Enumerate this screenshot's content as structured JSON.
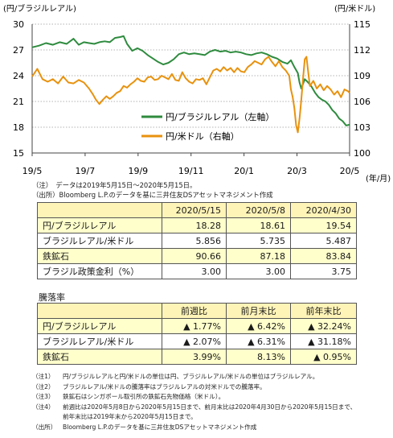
{
  "chart_data": {
    "type": "line",
    "left_axis_label": "(円/ブラジルレアル)",
    "right_axis_label": "(円/米ドル)",
    "x_unit_label": "(年/月)",
    "x_tick_labels": [
      "19/5",
      "19/7",
      "19/9",
      "19/11",
      "20/1",
      "20/3",
      "20/5"
    ],
    "left_ylim": [
      15,
      30
    ],
    "left_yticks": [
      "15",
      "18",
      "21",
      "24",
      "27",
      "30"
    ],
    "right_ylim": [
      100,
      115
    ],
    "right_yticks": [
      "100",
      "103",
      "106",
      "109",
      "112",
      "115"
    ],
    "grid": "horizontal dotted",
    "legend_position": "inside-right",
    "series": [
      {
        "name": "円/ブラジルレアル（左軸）",
        "axis": "left",
        "color": "#2e8b3e",
        "points": [
          [
            0,
            27.3
          ],
          [
            4,
            27.5
          ],
          [
            8,
            27.8
          ],
          [
            12,
            27.6
          ],
          [
            16,
            27.9
          ],
          [
            20,
            27.7
          ],
          [
            24,
            28.3
          ],
          [
            27,
            27.6
          ],
          [
            30,
            27.9
          ],
          [
            33,
            27.8
          ],
          [
            36,
            27.7
          ],
          [
            39,
            27.9
          ],
          [
            42,
            28.0
          ],
          [
            45,
            27.9
          ],
          [
            48,
            28.4
          ],
          [
            51,
            28.5
          ],
          [
            53,
            28.6
          ],
          [
            55,
            27.7
          ],
          [
            58,
            26.9
          ],
          [
            61,
            27.2
          ],
          [
            64,
            26.9
          ],
          [
            67,
            26.4
          ],
          [
            70,
            26.0
          ],
          [
            73,
            25.6
          ],
          [
            76,
            25.3
          ],
          [
            79,
            25.5
          ],
          [
            82,
            25.9
          ],
          [
            85,
            26.5
          ],
          [
            88,
            26.7
          ],
          [
            91,
            26.5
          ],
          [
            94,
            26.6
          ],
          [
            97,
            26.5
          ],
          [
            100,
            26.4
          ],
          [
            103,
            26.8
          ],
          [
            106,
            27.0
          ],
          [
            109,
            26.8
          ],
          [
            112,
            26.9
          ],
          [
            115,
            26.7
          ],
          [
            118,
            26.8
          ],
          [
            121,
            26.7
          ],
          [
            124,
            26.5
          ],
          [
            127,
            26.4
          ],
          [
            130,
            26.6
          ],
          [
            133,
            26.7
          ],
          [
            136,
            26.5
          ],
          [
            139,
            26.2
          ],
          [
            142,
            26.0
          ],
          [
            145,
            25.6
          ],
          [
            148,
            25.4
          ],
          [
            150,
            25.8
          ],
          [
            152,
            25.0
          ],
          [
            154,
            24.3
          ],
          [
            155,
            23.2
          ],
          [
            156,
            22.5
          ],
          [
            158,
            23.6
          ],
          [
            160,
            23.2
          ],
          [
            162,
            22.7
          ],
          [
            164,
            22.0
          ],
          [
            166,
            21.5
          ],
          [
            168,
            21.2
          ],
          [
            170,
            21.0
          ],
          [
            172,
            20.6
          ],
          [
            174,
            20.0
          ],
          [
            176,
            19.6
          ],
          [
            178,
            19.0
          ],
          [
            180,
            18.7
          ],
          [
            182,
            18.2
          ],
          [
            184,
            18.3
          ]
        ]
      },
      {
        "name": "円/米ドル（右軸）",
        "axis": "right",
        "color": "#e8920e",
        "points": [
          [
            0,
            108.9
          ],
          [
            3,
            109.8
          ],
          [
            6,
            108.6
          ],
          [
            9,
            108.3
          ],
          [
            12,
            108.6
          ],
          [
            15,
            108.1
          ],
          [
            18,
            108.9
          ],
          [
            21,
            108.2
          ],
          [
            24,
            108.1
          ],
          [
            27,
            108.5
          ],
          [
            30,
            108.2
          ],
          [
            33,
            107.5
          ],
          [
            35,
            106.9
          ],
          [
            37,
            106.2
          ],
          [
            39,
            105.7
          ],
          [
            41,
            106.2
          ],
          [
            43,
            106.6
          ],
          [
            45,
            106.3
          ],
          [
            47,
            106.6
          ],
          [
            49,
            107.0
          ],
          [
            51,
            107.2
          ],
          [
            53,
            107.8
          ],
          [
            55,
            107.6
          ],
          [
            57,
            108.0
          ],
          [
            59,
            108.3
          ],
          [
            61,
            108.7
          ],
          [
            63,
            108.4
          ],
          [
            65,
            108.3
          ],
          [
            67,
            108.8
          ],
          [
            69,
            108.9
          ],
          [
            71,
            108.5
          ],
          [
            73,
            108.6
          ],
          [
            75,
            109.0
          ],
          [
            77,
            108.8
          ],
          [
            79,
            108.6
          ],
          [
            81,
            109.2
          ],
          [
            83,
            108.5
          ],
          [
            85,
            108.4
          ],
          [
            87,
            109.4
          ],
          [
            89,
            108.7
          ],
          [
            91,
            108.3
          ],
          [
            93,
            108.1
          ],
          [
            95,
            108.6
          ],
          [
            97,
            108.5
          ],
          [
            99,
            108.7
          ],
          [
            101,
            108.0
          ],
          [
            103,
            108.8
          ],
          [
            105,
            109.6
          ],
          [
            107,
            109.8
          ],
          [
            109,
            109.5
          ],
          [
            111,
            110.0
          ],
          [
            113,
            109.6
          ],
          [
            115,
            109.9
          ],
          [
            117,
            109.4
          ],
          [
            119,
            109.9
          ],
          [
            121,
            109.5
          ],
          [
            123,
            109.4
          ],
          [
            125,
            110.0
          ],
          [
            127,
            110.3
          ],
          [
            129,
            110.7
          ],
          [
            131,
            110.5
          ],
          [
            133,
            110.3
          ],
          [
            135,
            110.9
          ],
          [
            137,
            111.2
          ],
          [
            139,
            110.6
          ],
          [
            141,
            110.1
          ],
          [
            143,
            110.7
          ],
          [
            145,
            110.0
          ],
          [
            147,
            109.6
          ],
          [
            149,
            109.0
          ],
          [
            150,
            107.4
          ],
          [
            151,
            106.5
          ],
          [
            152,
            105.2
          ],
          [
            153,
            103.2
          ],
          [
            154,
            102.4
          ],
          [
            155,
            104.0
          ],
          [
            156,
            106.2
          ],
          [
            157,
            108.6
          ],
          [
            158,
            110.9
          ],
          [
            159,
            111.2
          ],
          [
            160,
            109.4
          ],
          [
            161,
            107.8
          ],
          [
            163,
            108.4
          ],
          [
            165,
            107.5
          ],
          [
            167,
            108.0
          ],
          [
            169,
            107.3
          ],
          [
            171,
            107.8
          ],
          [
            173,
            107.4
          ],
          [
            175,
            106.8
          ],
          [
            177,
            107.2
          ],
          [
            179,
            106.5
          ],
          [
            181,
            107.4
          ],
          [
            183,
            107.2
          ],
          [
            184,
            107.0
          ]
        ]
      }
    ]
  },
  "period_note": "（注）　データは2019年5月15日～2020年5月15日。",
  "source_note_top": "（出所）Bloomberg L.P.のデータを基に三井住友DSアセットマネジメント作成",
  "table1": {
    "headers": [
      "",
      "2020/5/15",
      "2020/5/8",
      "2020/4/30"
    ],
    "rows": [
      [
        "円/ブラジルレアル",
        "18.28",
        "18.61",
        "19.54"
      ],
      [
        "ブラジルレアル/米ドル",
        "5.856",
        "5.735",
        "5.487"
      ],
      [
        "鉄鉱石",
        "90.66",
        "87.18",
        "83.84"
      ],
      [
        "ブラジル政策金利（%）",
        "3.00",
        "3.00",
        "3.75"
      ]
    ]
  },
  "section_label": "騰落率",
  "table2": {
    "headers": [
      "",
      "前週比",
      "前月末比",
      "前年末比"
    ],
    "rows": [
      [
        "円/ブラジルレアル",
        "▲ 1.77%",
        "▲ 6.42%",
        "▲ 32.24%"
      ],
      [
        "ブラジルレアル/米ドル",
        "▲ 2.07%",
        "▲ 6.31%",
        "▲ 31.18%"
      ],
      [
        "鉄鉱石",
        "3.99%",
        "8.13%",
        "▲ 0.95%"
      ]
    ]
  },
  "footnotes": [
    {
      "key": "（注1）",
      "text": "円/ブラジルレアルと円/米ドルの単位は円、ブラジルレアル/米ドルの単位はブラジルレアル。"
    },
    {
      "key": "（注2）",
      "text": "ブラジルレアル/米ドルの騰落率はブラジルレアルの対米ドルでの騰落率。"
    },
    {
      "key": "（注3）",
      "text": "鉄鉱石はシンガポール取引所の鉄鉱石先物価格（米ドル）。"
    },
    {
      "key": "（注4）",
      "text": "前週比は2020年5月8日から2020年5月15日まで、前月末比は2020年4月30日から2020年5月15日まで、"
    },
    {
      "key": "",
      "text": "前年末比は2019年末から2020年5月15日まで。"
    },
    {
      "key": "（出所）",
      "text": "Bloomberg L.P.のデータを基に三井住友DSアセットマネジメント作成"
    }
  ]
}
